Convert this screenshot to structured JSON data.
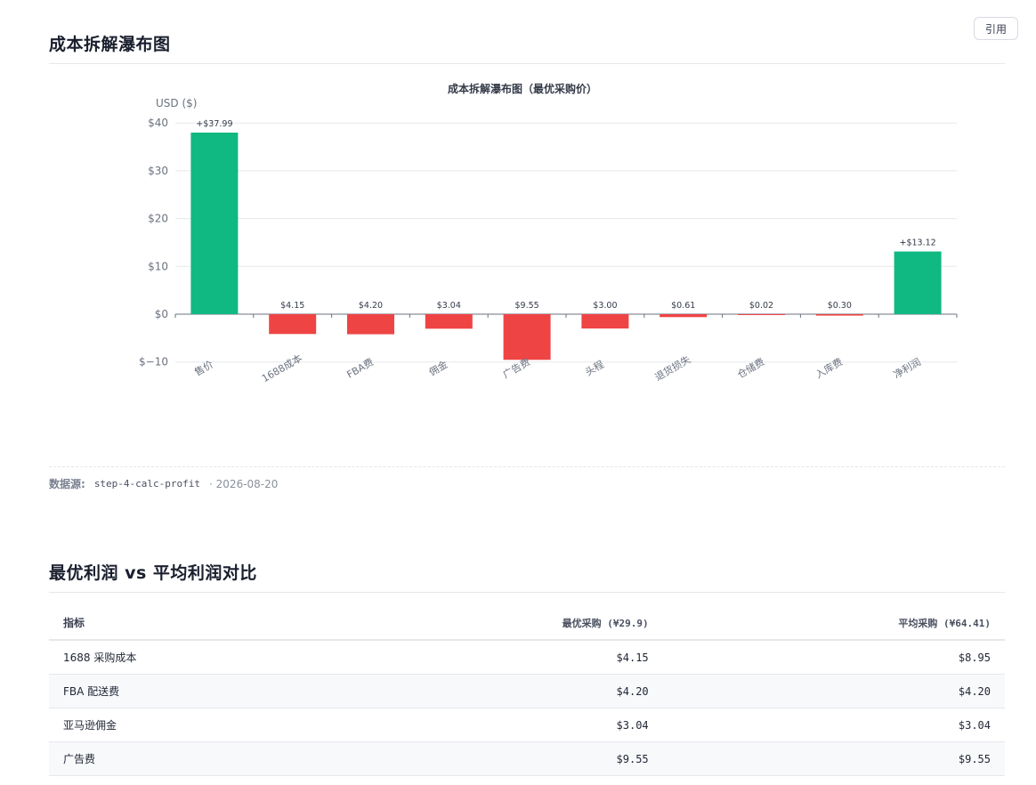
{
  "cite_button": "引用",
  "section1": {
    "title": "成本拆解瀑布图"
  },
  "source": {
    "label": "数据源:",
    "code": "step-4-calc-profit",
    "date": "· 2026-08-20"
  },
  "chart_data": {
    "type": "bar",
    "title": "成本拆解瀑布图（最优采购价）",
    "ylabel": "USD ($)",
    "ylim": [
      -10,
      40
    ],
    "yticks": [
      40,
      30,
      20,
      10,
      0,
      -10
    ],
    "ytick_labels": [
      "$40",
      "$30",
      "$20",
      "$10",
      "$0",
      "$−10"
    ],
    "categories": [
      "售价",
      "1688成本",
      "FBA费",
      "佣金",
      "广告费",
      "头程",
      "退货损失",
      "仓储费",
      "入库费",
      "净利润"
    ],
    "values": [
      37.99,
      -4.15,
      -4.2,
      -3.04,
      -9.55,
      -3.0,
      -0.61,
      -0.02,
      -0.3,
      13.12
    ],
    "labels": [
      "+$37.99",
      "$4.15",
      "$4.20",
      "$3.04",
      "$9.55",
      "$3.00",
      "$0.61",
      "$0.02",
      "$0.30",
      "+$13.12"
    ],
    "colors": {
      "positive": "#10b981",
      "negative": "#ef4444"
    },
    "grid": true
  },
  "section2": {
    "title": "最优利润 vs 平均利润对比",
    "columns": [
      "指标",
      "最优采购 (¥29.9)",
      "平均采购 (¥64.41)"
    ],
    "rows": [
      [
        "1688 采购成本",
        "$4.15",
        "$8.95"
      ],
      [
        "FBA 配送费",
        "$4.20",
        "$4.20"
      ],
      [
        "亚马逊佣金",
        "$3.04",
        "$3.04"
      ],
      [
        "广告费",
        "$9.55",
        "$9.55"
      ]
    ]
  }
}
